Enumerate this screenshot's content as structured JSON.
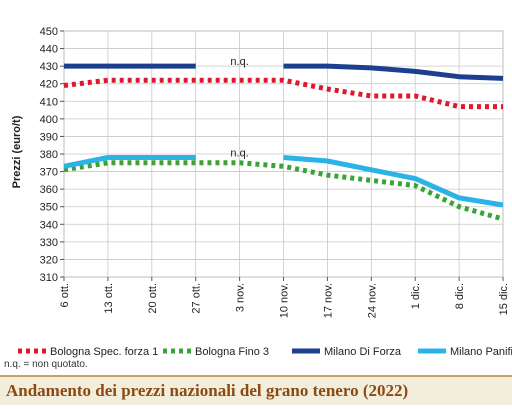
{
  "chart_data": {
    "type": "line",
    "title": "Andamento dei prezzi nazionali del grano tenero (2022)",
    "ylabel": "Prezzi (euro/t)",
    "xlabel": "",
    "ylim": [
      310,
      450
    ],
    "yticks": [
      310,
      320,
      330,
      340,
      350,
      360,
      370,
      380,
      390,
      400,
      410,
      420,
      430,
      440,
      450
    ],
    "categories": [
      "6 ott.",
      "13 ott.",
      "20 ott.",
      "27 ott.",
      "3 nov.",
      "10 nov.",
      "17 nov.",
      "24 nov.",
      "1 dic.",
      "8 dic.",
      "15 dic."
    ],
    "grid": true,
    "legend_position": "bottom",
    "series": [
      {
        "name": "Bologna Spec. forza 1",
        "color": "#e0182d",
        "style": "dotted",
        "values": [
          419,
          422,
          422,
          422,
          422,
          422,
          417,
          413,
          413,
          407,
          407
        ]
      },
      {
        "name": "Bologna Fino 3",
        "color": "#3aa335",
        "style": "dotted",
        "values": [
          371,
          375,
          375,
          375,
          375,
          373,
          368,
          365,
          362,
          350,
          343
        ]
      },
      {
        "name": "Milano Di Forza",
        "color": "#1c3f8f",
        "style": "solid",
        "values": [
          430,
          430,
          430,
          430,
          null,
          430,
          430,
          429,
          427,
          424,
          423
        ]
      },
      {
        "name": "Milano Panificabile",
        "color": "#2bb3e6",
        "style": "solid",
        "values": [
          373,
          378,
          378,
          378,
          null,
          378,
          376,
          371,
          366,
          355,
          351
        ]
      }
    ],
    "annotations": [
      "n.q.",
      "n.q."
    ]
  },
  "note": "n.q. = non quotato."
}
